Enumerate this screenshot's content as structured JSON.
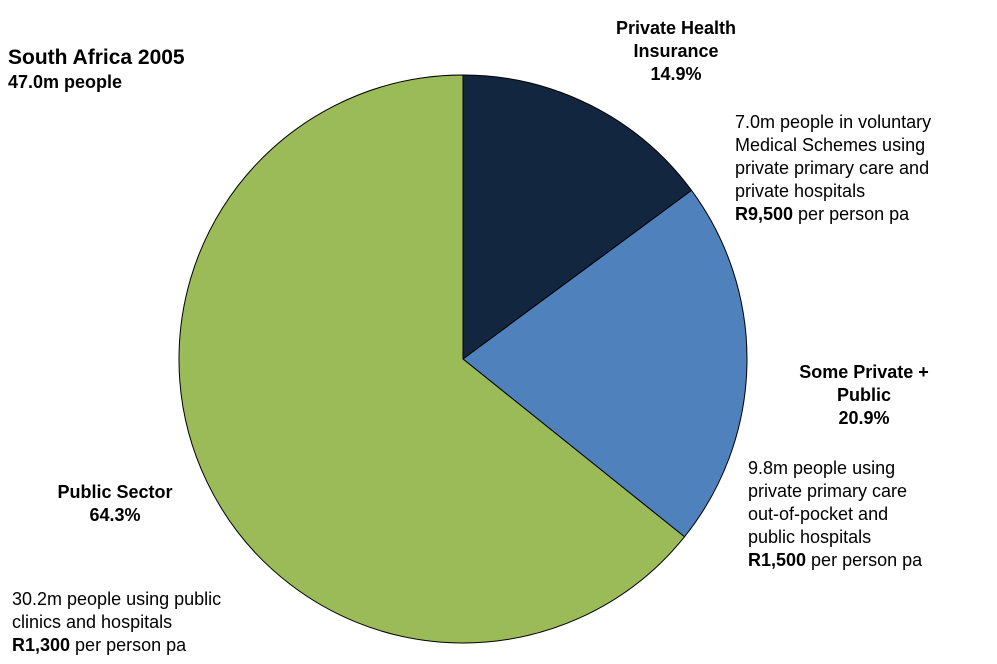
{
  "chart_data": {
    "type": "pie",
    "title": "South Africa 2005",
    "subtitle": "47.0m people",
    "slices": [
      {
        "label_lines": [
          "Private Health",
          "Insurance"
        ],
        "value": 14.9,
        "pct_text": "14.9%",
        "color": "#13263f",
        "desc_lines": [
          "7.0m people in voluntary",
          "Medical Schemes using",
          "private primary care and",
          "private hospitals"
        ],
        "cost_bold": "R9,500",
        "cost_rest": " per person pa"
      },
      {
        "label_lines": [
          "Some Private +",
          "Public"
        ],
        "value": 20.9,
        "pct_text": "20.9%",
        "color": "#4f81bd",
        "desc_lines": [
          "9.8m people using",
          "private primary care",
          "out-of-pocket and",
          "public hospitals"
        ],
        "cost_bold": "R1,500",
        "cost_rest": " per person pa"
      },
      {
        "label_lines": [
          "Public Sector"
        ],
        "value": 64.3,
        "pct_text": "64.3%",
        "color": "#9bbb59",
        "desc_lines": [
          "30.2m people using public",
          "clinics and hospitals"
        ],
        "cost_bold": "R1,300",
        "cost_rest": " per person pa"
      }
    ],
    "start_angle": "12 o'clock",
    "direction": "clockwise",
    "legend": "none"
  }
}
